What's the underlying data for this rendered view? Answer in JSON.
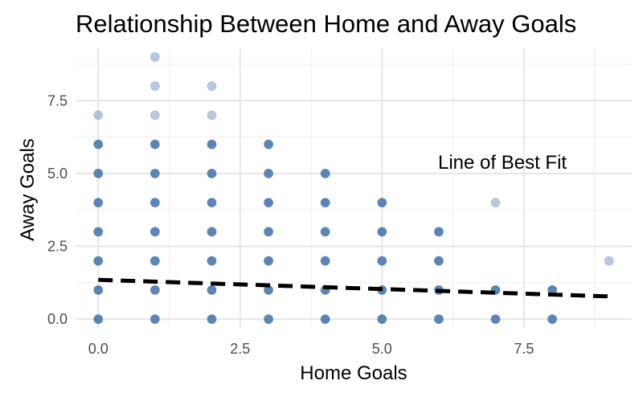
{
  "chart_data": {
    "type": "scatter",
    "title": "Relationship Between Home and Away Goals",
    "xlabel": "Home Goals",
    "ylabel": "Away Goals",
    "xlim": [
      -0.4,
      9.4
    ],
    "ylim": [
      -0.3,
      9.3
    ],
    "x_ticks": [
      0.0,
      2.5,
      5.0,
      7.5
    ],
    "x_tick_labels": [
      "0.0",
      "2.5",
      "5.0",
      "7.5"
    ],
    "y_ticks": [
      0.0,
      2.5,
      5.0,
      7.5
    ],
    "y_tick_labels": [
      "0.0",
      "2.5",
      "5.0",
      "7.5"
    ],
    "grid": true,
    "point_color": "#4a78ad",
    "line_color": "#000000",
    "points": [
      {
        "x": 0,
        "y": 0,
        "dense": true
      },
      {
        "x": 0,
        "y": 1,
        "dense": true
      },
      {
        "x": 0,
        "y": 2,
        "dense": true
      },
      {
        "x": 0,
        "y": 3,
        "dense": true
      },
      {
        "x": 0,
        "y": 4,
        "dense": true
      },
      {
        "x": 0,
        "y": 5,
        "dense": true
      },
      {
        "x": 0,
        "y": 6,
        "dense": true
      },
      {
        "x": 0,
        "y": 7,
        "dense": false
      },
      {
        "x": 1,
        "y": 0,
        "dense": true
      },
      {
        "x": 1,
        "y": 1,
        "dense": true
      },
      {
        "x": 1,
        "y": 2,
        "dense": true
      },
      {
        "x": 1,
        "y": 3,
        "dense": true
      },
      {
        "x": 1,
        "y": 4,
        "dense": true
      },
      {
        "x": 1,
        "y": 5,
        "dense": true
      },
      {
        "x": 1,
        "y": 6,
        "dense": true
      },
      {
        "x": 1,
        "y": 7,
        "dense": false
      },
      {
        "x": 1,
        "y": 8,
        "dense": false
      },
      {
        "x": 1,
        "y": 9,
        "dense": false
      },
      {
        "x": 2,
        "y": 0,
        "dense": true
      },
      {
        "x": 2,
        "y": 1,
        "dense": true
      },
      {
        "x": 2,
        "y": 2,
        "dense": true
      },
      {
        "x": 2,
        "y": 3,
        "dense": true
      },
      {
        "x": 2,
        "y": 4,
        "dense": true
      },
      {
        "x": 2,
        "y": 5,
        "dense": true
      },
      {
        "x": 2,
        "y": 6,
        "dense": true
      },
      {
        "x": 2,
        "y": 7,
        "dense": false
      },
      {
        "x": 2,
        "y": 8,
        "dense": false
      },
      {
        "x": 3,
        "y": 0,
        "dense": true
      },
      {
        "x": 3,
        "y": 1,
        "dense": true
      },
      {
        "x": 3,
        "y": 2,
        "dense": true
      },
      {
        "x": 3,
        "y": 3,
        "dense": true
      },
      {
        "x": 3,
        "y": 4,
        "dense": true
      },
      {
        "x": 3,
        "y": 5,
        "dense": true
      },
      {
        "x": 3,
        "y": 6,
        "dense": true
      },
      {
        "x": 4,
        "y": 0,
        "dense": true
      },
      {
        "x": 4,
        "y": 1,
        "dense": true
      },
      {
        "x": 4,
        "y": 2,
        "dense": true
      },
      {
        "x": 4,
        "y": 3,
        "dense": true
      },
      {
        "x": 4,
        "y": 4,
        "dense": true
      },
      {
        "x": 4,
        "y": 5,
        "dense": true
      },
      {
        "x": 5,
        "y": 0,
        "dense": true
      },
      {
        "x": 5,
        "y": 1,
        "dense": true
      },
      {
        "x": 5,
        "y": 2,
        "dense": true
      },
      {
        "x": 5,
        "y": 3,
        "dense": true
      },
      {
        "x": 5,
        "y": 4,
        "dense": true
      },
      {
        "x": 6,
        "y": 0,
        "dense": true
      },
      {
        "x": 6,
        "y": 1,
        "dense": true
      },
      {
        "x": 6,
        "y": 2,
        "dense": true
      },
      {
        "x": 6,
        "y": 3,
        "dense": true
      },
      {
        "x": 7,
        "y": 0,
        "dense": true
      },
      {
        "x": 7,
        "y": 1,
        "dense": true
      },
      {
        "x": 7,
        "y": 4,
        "dense": false
      },
      {
        "x": 8,
        "y": 0,
        "dense": true
      },
      {
        "x": 8,
        "y": 1,
        "dense": true
      },
      {
        "x": 9,
        "y": 2,
        "dense": false
      }
    ],
    "best_fit": {
      "label": "Line of Best Fit",
      "style": "dashed",
      "start": {
        "x": 0,
        "y": 1.35
      },
      "end": {
        "x": 9,
        "y": 0.78
      }
    }
  }
}
